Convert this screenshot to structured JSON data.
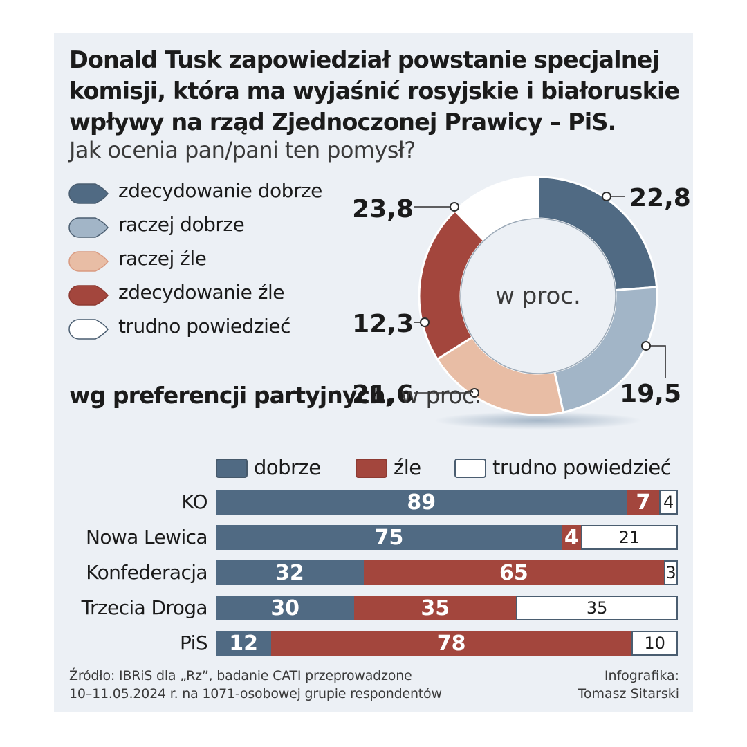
{
  "chart_data": [
    {
      "type": "pie",
      "title": "Donald Tusk zapowiedział powstanie specjalnej komisji, która ma wyjaśnić rosyjskie i białoruskie wpływy na rząd Zjednoczonej Prawicy – PiS.",
      "subtitle": "Jak ocenia pan/pani ten pomysł?",
      "center_label": "w proc.",
      "legend_placement": "left",
      "slices": [
        {
          "label": "zdecydowanie dobrze",
          "value": 23.8,
          "value_label": "23,8",
          "color": "#506a83"
        },
        {
          "label": "raczej dobrze",
          "value": 22.8,
          "value_label": "22,8",
          "color": "#a2b5c7"
        },
        {
          "label": "raczej źle",
          "value": 19.5,
          "value_label": "19,5",
          "color": "#e8bda5"
        },
        {
          "label": "zdecydowanie źle",
          "value": 21.6,
          "value_label": "21,6",
          "color": "#a3463d"
        },
        {
          "label": "trudno powiedzieć",
          "value": 12.3,
          "value_label": "12,3",
          "color": "#ffffff"
        }
      ]
    },
    {
      "type": "bar",
      "orientation": "horizontal",
      "stacked": true,
      "title_bold": "wg preferencji partyjnych,",
      "title_light": "w proc.",
      "categories": [
        "KO",
        "Nowa Lewica",
        "Konfederacja",
        "Trzecia Droga",
        "PiS"
      ],
      "series": [
        {
          "name": "dobrze",
          "color": "#506a83",
          "values": [
            89,
            75,
            32,
            30,
            12
          ]
        },
        {
          "name": "źle",
          "color": "#a3463d",
          "values": [
            7,
            4,
            65,
            35,
            78
          ]
        },
        {
          "name": "trudno powiedzieć",
          "color": "#ffffff",
          "values": [
            4,
            21,
            3,
            35,
            10
          ]
        }
      ],
      "xlim": [
        0,
        100
      ],
      "legend_placement": "top"
    }
  ],
  "footer": {
    "source_line1": "Źródło: IBRiS dla „Rz”, badanie CATI przeprowadzone",
    "source_line2": "10–11.05.2024 r. na 1071-osobowej grupie respondentów",
    "credit_line1": "Infografika:",
    "credit_line2": "Tomasz Sitarski"
  }
}
